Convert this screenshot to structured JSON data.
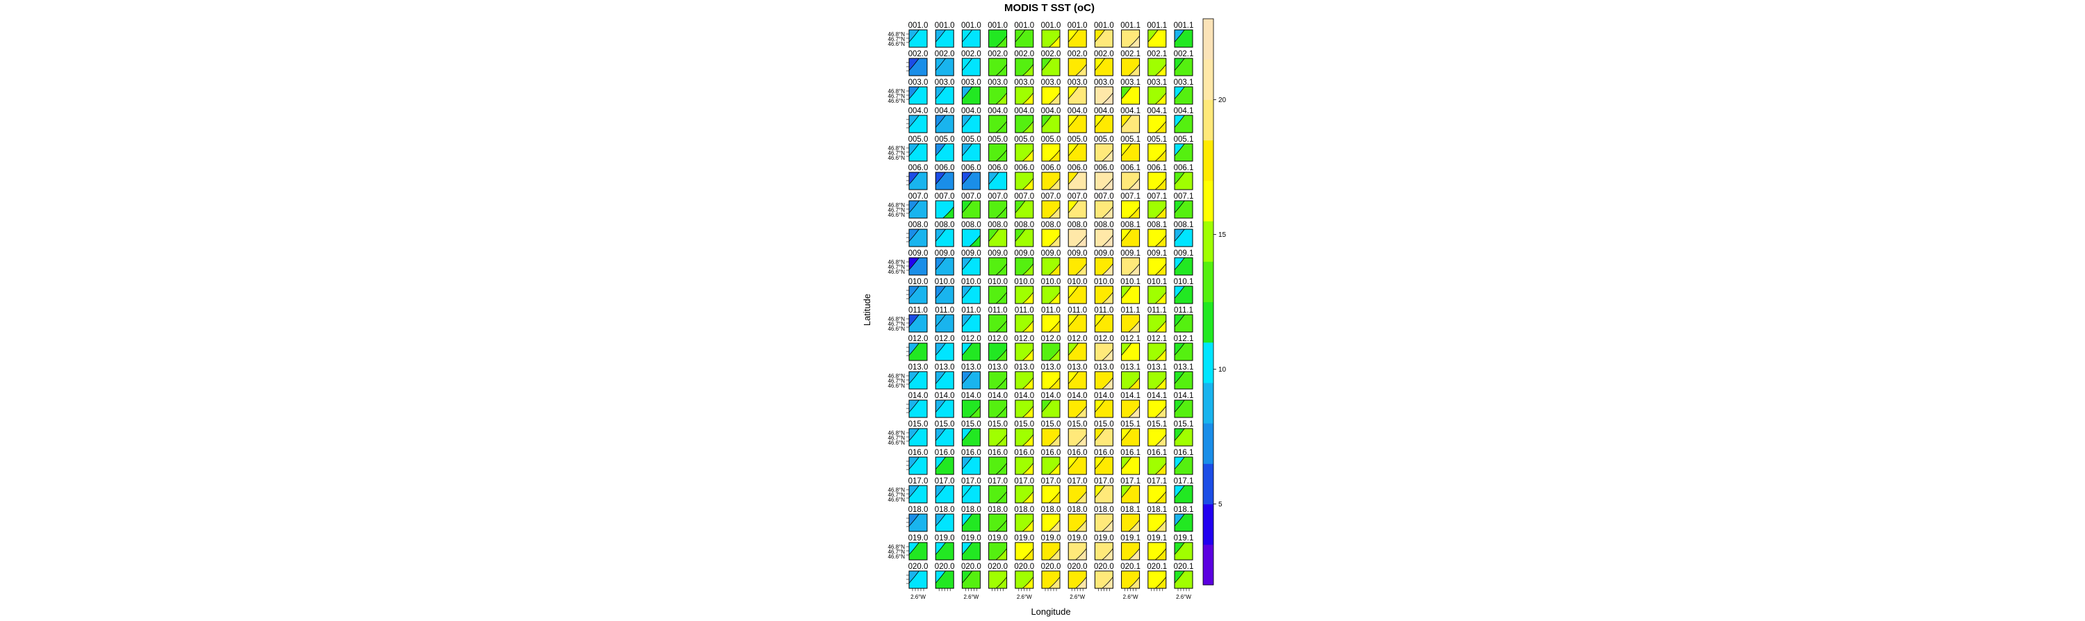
{
  "chart_data": {
    "type": "heatmap",
    "title": "MODIS T SST (oC)",
    "xlabel": "Longitude",
    "ylabel": "Latitude",
    "x_tick_label": "2.6°W",
    "y_tick_labels": [
      "46.8°N",
      "46.7°N",
      "46.6°N"
    ],
    "colorbar": {
      "ticks": [
        5,
        10,
        15,
        20
      ],
      "range": [
        2,
        23
      ],
      "colors": [
        "#5b00e0",
        "#2200f0",
        "#1c4de6",
        "#1a8ee8",
        "#19b4ee",
        "#00e5ff",
        "#22e822",
        "#55f010",
        "#a0ff00",
        "#ffff00",
        "#ffea00",
        "#ffe97a",
        "#ffe8a8",
        "#fbe3b8"
      ]
    },
    "panel_columns": 11,
    "panel_rows": 20,
    "panel_labels": [
      [
        "001.0",
        "001.0",
        "001.0",
        "001.0",
        "001.0",
        "001.0",
        "001.0",
        "001.0",
        "001.1",
        "001.1",
        "001.1"
      ],
      [
        "002.0",
        "002.0",
        "002.0",
        "002.0",
        "002.0",
        "002.0",
        "002.0",
        "002.0",
        "002.1",
        "002.1",
        "002.1"
      ],
      [
        "003.0",
        "003.0",
        "003.0",
        "003.0",
        "003.0",
        "003.0",
        "003.0",
        "003.0",
        "003.1",
        "003.1",
        "003.1"
      ],
      [
        "004.0",
        "004.0",
        "004.0",
        "004.0",
        "004.0",
        "004.0",
        "004.0",
        "004.0",
        "004.1",
        "004.1",
        "004.1"
      ],
      [
        "005.0",
        "005.0",
        "005.0",
        "005.0",
        "005.0",
        "005.0",
        "005.0",
        "005.0",
        "005.1",
        "005.1",
        "005.1"
      ],
      [
        "006.0",
        "006.0",
        "006.0",
        "006.0",
        "006.0",
        "006.0",
        "006.0",
        "006.0",
        "006.1",
        "006.1",
        "006.1"
      ],
      [
        "007.0",
        "007.0",
        "007.0",
        "007.0",
        "007.0",
        "007.0",
        "007.0",
        "007.0",
        "007.1",
        "007.1",
        "007.1"
      ],
      [
        "008.0",
        "008.0",
        "008.0",
        "008.0",
        "008.0",
        "008.0",
        "008.0",
        "008.0",
        "008.1",
        "008.1",
        "008.1"
      ],
      [
        "009.0",
        "009.0",
        "009.0",
        "009.0",
        "009.0",
        "009.0",
        "009.0",
        "009.0",
        "009.1",
        "009.1",
        "009.1"
      ],
      [
        "010.0",
        "010.0",
        "010.0",
        "010.0",
        "010.0",
        "010.0",
        "010.0",
        "010.0",
        "010.1",
        "010.1",
        "010.1"
      ],
      [
        "011.0",
        "011.0",
        "011.0",
        "011.0",
        "011.0",
        "011.0",
        "011.0",
        "011.0",
        "011.1",
        "011.1",
        "011.1"
      ],
      [
        "012.0",
        "012.0",
        "012.0",
        "012.0",
        "012.0",
        "012.0",
        "012.0",
        "012.0",
        "012.1",
        "012.1",
        "012.1"
      ],
      [
        "013.0",
        "013.0",
        "013.0",
        "013.0",
        "013.0",
        "013.0",
        "013.0",
        "013.0",
        "013.1",
        "013.1",
        "013.1"
      ],
      [
        "014.0",
        "014.0",
        "014.0",
        "014.0",
        "014.0",
        "014.0",
        "014.0",
        "014.0",
        "014.1",
        "014.1",
        "014.1"
      ],
      [
        "015.0",
        "015.0",
        "015.0",
        "015.0",
        "015.0",
        "015.0",
        "015.0",
        "015.0",
        "015.1",
        "015.1",
        "015.1"
      ],
      [
        "016.0",
        "016.0",
        "016.0",
        "016.0",
        "016.0",
        "016.0",
        "016.0",
        "016.0",
        "016.1",
        "016.1",
        "016.1"
      ],
      [
        "017.0",
        "017.0",
        "017.0",
        "017.0",
        "017.0",
        "017.0",
        "017.0",
        "017.0",
        "017.1",
        "017.1",
        "017.1"
      ],
      [
        "018.0",
        "018.0",
        "018.0",
        "018.0",
        "018.0",
        "018.0",
        "018.0",
        "018.0",
        "018.1",
        "018.1",
        "018.1"
      ],
      [
        "019.0",
        "019.0",
        "019.0",
        "019.0",
        "019.0",
        "019.0",
        "019.0",
        "019.0",
        "019.1",
        "019.1",
        "019.1"
      ],
      [
        "020.0",
        "020.0",
        "020.0",
        "020.0",
        "020.0",
        "020.0",
        "020.0",
        "020.0",
        "020.1",
        "020.1",
        "020.1"
      ]
    ],
    "panel_mean_sst": [
      [
        10.2,
        10.0,
        10.8,
        12.4,
        13.6,
        14.2,
        18.0,
        18.6,
        19.0,
        16.4,
        11.2
      ],
      [
        7.4,
        8.8,
        10.6,
        13.2,
        13.8,
        14.0,
        17.8,
        18.2,
        17.8,
        14.6,
        13.4
      ],
      [
        9.8,
        10.4,
        11.2,
        13.4,
        14.0,
        16.8,
        18.6,
        20.6,
        15.6,
        14.4,
        12.8
      ],
      [
        10.4,
        8.2,
        9.6,
        13.2,
        13.2,
        14.6,
        17.8,
        18.4,
        19.2,
        16.2,
        13.0
      ],
      [
        10.6,
        9.6,
        10.2,
        12.8,
        14.4,
        16.2,
        18.4,
        19.0,
        17.6,
        16.6,
        12.8
      ],
      [
        8.0,
        7.6,
        7.8,
        10.8,
        14.6,
        17.6,
        20.4,
        20.8,
        18.8,
        16.2,
        14.2
      ],
      [
        9.4,
        10.6,
        13.0,
        12.8,
        14.4,
        17.6,
        18.6,
        19.0,
        15.8,
        15.2,
        13.6
      ],
      [
        9.0,
        10.8,
        9.8,
        14.2,
        14.6,
        16.8,
        20.2,
        20.4,
        18.0,
        16.4,
        10.8
      ],
      [
        6.6,
        8.4,
        9.6,
        12.8,
        13.6,
        15.2,
        17.2,
        18.4,
        19.0,
        15.8,
        11.4
      ],
      [
        8.2,
        8.6,
        9.8,
        13.0,
        14.0,
        14.6,
        17.8,
        18.2,
        16.4,
        14.8,
        11.6
      ],
      [
        8.0,
        9.4,
        10.6,
        13.0,
        14.2,
        15.6,
        18.0,
        18.4,
        17.4,
        15.2,
        13.8
      ],
      [
        11.0,
        10.2,
        11.6,
        12.4,
        14.2,
        13.8,
        17.4,
        18.6,
        16.6,
        14.8,
        13.2
      ],
      [
        10.6,
        9.8,
        9.0,
        13.4,
        14.6,
        16.4,
        17.6,
        18.4,
        15.2,
        14.6,
        12.8
      ],
      [
        10.4,
        10.8,
        11.2,
        13.4,
        14.0,
        14.4,
        17.8,
        18.4,
        18.4,
        16.6,
        13.4
      ],
      [
        10.6,
        10.2,
        12.4,
        14.0,
        14.8,
        17.6,
        18.6,
        19.2,
        17.6,
        16.6,
        14.2
      ],
      [
        10.6,
        11.0,
        10.8,
        13.4,
        14.2,
        14.8,
        17.6,
        17.8,
        16.4,
        15.2,
        12.6
      ],
      [
        10.4,
        9.6,
        10.8,
        13.2,
        14.6,
        16.8,
        18.0,
        18.6,
        17.0,
        16.4,
        12.4
      ],
      [
        9.4,
        9.8,
        11.0,
        13.4,
        14.8,
        16.8,
        17.8,
        18.6,
        18.0,
        16.8,
        11.2
      ],
      [
        11.2,
        11.4,
        11.8,
        13.6,
        15.8,
        17.6,
        19.2,
        19.4,
        18.2,
        15.6,
        14.0
      ],
      [
        10.8,
        11.4,
        13.0,
        14.4,
        14.8,
        17.2,
        18.4,
        18.8,
        17.2,
        15.6,
        14.2
      ]
    ],
    "panel_color_shift": [
      [
        -1.2,
        -0.8,
        -0.6,
        0.4,
        -0.6,
        2.4,
        -1.6,
        -1.2,
        1.8,
        -1.6,
        -2.0
      ],
      [
        -2.4,
        -0.6,
        -0.4,
        0.2,
        1.6,
        -1.4,
        2.0,
        -1.6,
        1.4,
        1.8,
        -1.8
      ],
      [
        -2.0,
        -1.4,
        -1.8,
        0.6,
        1.8,
        2.0,
        -2.2,
        2.4,
        -2.0,
        1.6,
        -2.0
      ],
      [
        -1.6,
        -1.6,
        -1.4,
        0.0,
        0.8,
        -1.6,
        -2.0,
        -2.4,
        -2.2,
        2.0,
        -2.2
      ],
      [
        -1.4,
        -1.8,
        -1.2,
        0.2,
        1.8,
        2.0,
        -1.8,
        1.8,
        -1.6,
        1.8,
        -2.0
      ],
      [
        -1.8,
        -1.8,
        -1.6,
        -1.8,
        1.8,
        2.0,
        -2.0,
        2.2,
        1.6,
        1.4,
        -1.6
      ],
      [
        -1.6,
        1.6,
        -1.8,
        0.4,
        -1.8,
        1.8,
        -2.2,
        2.0,
        1.6,
        1.8,
        -2.0
      ],
      [
        -2.4,
        -1.4,
        1.6,
        -1.2,
        -1.8,
        2.0,
        1.8,
        2.2,
        -1.6,
        2.0,
        -2.0
      ],
      [
        -2.0,
        -1.6,
        -1.4,
        0.2,
        1.2,
        2.2,
        1.8,
        1.6,
        1.8,
        1.8,
        -1.6
      ],
      [
        -1.6,
        -1.6,
        -1.6,
        0.4,
        1.6,
        1.6,
        -1.8,
        1.6,
        -1.8,
        1.6,
        -1.8
      ],
      [
        -2.0,
        -1.2,
        -1.4,
        0.4,
        1.6,
        2.0,
        -1.8,
        -2.0,
        1.8,
        1.6,
        -1.6
      ],
      [
        -1.6,
        -1.4,
        -1.8,
        0.4,
        1.6,
        1.4,
        -2.2,
        1.6,
        -1.8,
        1.8,
        -2.2
      ],
      [
        -1.4,
        -1.8,
        -1.2,
        0.4,
        1.6,
        2.0,
        -1.8,
        1.8,
        2.0,
        1.6,
        -1.8
      ],
      [
        -1.8,
        -1.4,
        1.6,
        0.2,
        1.6,
        -1.6,
        2.0,
        -2.0,
        2.0,
        2.0,
        -2.0
      ],
      [
        -1.4,
        -1.6,
        -1.8,
        0.4,
        1.6,
        2.0,
        1.8,
        -2.0,
        -1.6,
        2.2,
        -2.0
      ],
      [
        -1.6,
        -1.4,
        -1.4,
        0.4,
        1.8,
        1.6,
        -1.8,
        -2.2,
        -1.8,
        1.8,
        -2.0
      ],
      [
        -1.6,
        -1.6,
        -1.2,
        0.4,
        1.8,
        1.6,
        1.8,
        -2.0,
        -2.0,
        1.8,
        -2.2
      ],
      [
        -1.6,
        -1.4,
        -1.2,
        0.4,
        1.6,
        2.0,
        1.8,
        1.6,
        1.8,
        2.2,
        -2.0
      ],
      [
        -1.4,
        -1.8,
        -1.6,
        0.4,
        1.6,
        1.6,
        1.8,
        2.0,
        2.0,
        1.8,
        -1.8
      ],
      [
        -1.6,
        -1.8,
        -1.4,
        0.2,
        1.8,
        1.8,
        1.6,
        1.8,
        1.8,
        1.8,
        -2.0
      ]
    ],
    "contours": "black contour lines over each panel"
  }
}
